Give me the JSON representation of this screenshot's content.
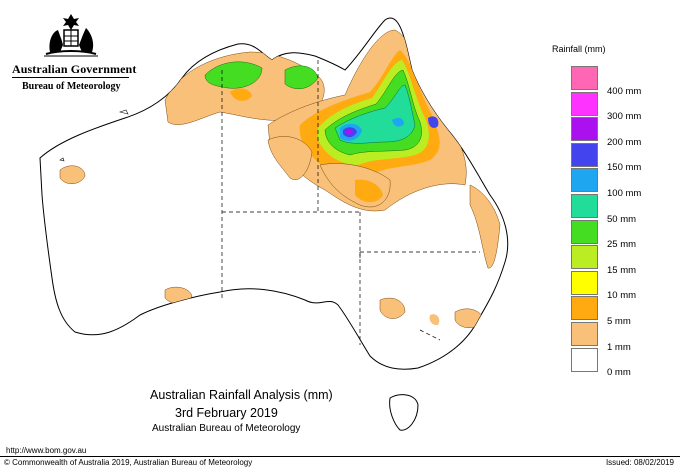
{
  "logo": {
    "government": "Australian Government",
    "bureau": "Bureau of Meteorology"
  },
  "legend": {
    "title": "Rainfall (mm)",
    "bins": [
      {
        "label": "",
        "color": "#ff66b3"
      },
      {
        "label": "400 mm",
        "color": "#ff33ff"
      },
      {
        "label": "300 mm",
        "color": "#aa11ee"
      },
      {
        "label": "200 mm",
        "color": "#4444ee"
      },
      {
        "label": "150 mm",
        "color": "#1ea7f0"
      },
      {
        "label": "100 mm",
        "color": "#22dd99"
      },
      {
        "label": "50 mm",
        "color": "#44dd22"
      },
      {
        "label": "25 mm",
        "color": "#bbee22"
      },
      {
        "label": "15 mm",
        "color": "#ffff00"
      },
      {
        "label": "10 mm",
        "color": "#ffaa11"
      },
      {
        "label": "5 mm",
        "color": "#f8c078"
      },
      {
        "label": "1 mm",
        "color": "#ffffff"
      },
      {
        "label": "0 mm",
        "color": ""
      }
    ]
  },
  "title": {
    "line1": "Australian Rainfall Analysis (mm)",
    "line2": "3rd February 2019",
    "line3": "Australian Bureau of Meteorology"
  },
  "footer": {
    "url": "http://www.bom.gov.au",
    "copyright": "© Commonwealth of Australia 2019, Australian Bureau of Meteorology",
    "issued": "Issued: 08/02/2019"
  }
}
